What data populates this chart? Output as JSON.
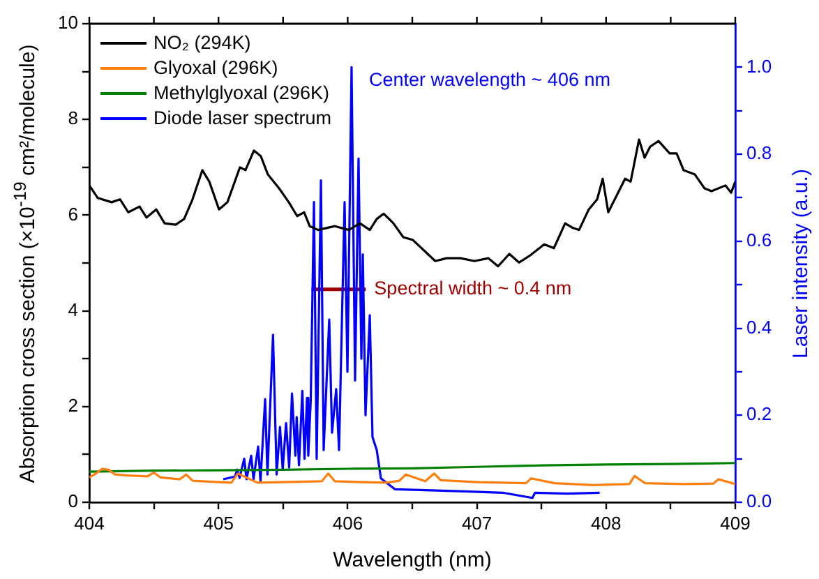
{
  "chart_data": {
    "type": "line",
    "xlabel": "Wavelength (nm)",
    "ylabel": "Absorption cross section (×10$^{-19}$ cm²/molecule)",
    "y2label": "Laser intensity (a.u.)",
    "xlim": [
      404,
      409
    ],
    "xticks": [
      404,
      {
        "value": 404.5,
        "label": null
      },
      405,
      {
        "value": 405.5,
        "label": null
      },
      406,
      {
        "value": 406.5,
        "label": null
      },
      407,
      {
        "value": 407.5,
        "label": null
      },
      408,
      {
        "value": 408.5,
        "label": null
      },
      409
    ],
    "ylim": [
      0,
      10
    ],
    "yticks": [
      0,
      {
        "value": 1,
        "label": null
      },
      2,
      {
        "value": 3,
        "label": null
      },
      4,
      {
        "value": 5,
        "label": null
      },
      6,
      {
        "value": 7,
        "label": null
      },
      8,
      {
        "value": 9,
        "label": null
      },
      10
    ],
    "y2lim": [
      0,
      1.1
    ],
    "y2ticks": [
      {
        "value": 0,
        "label": "0.0"
      },
      {
        "value": 0.1,
        "label": null
      },
      0.2,
      {
        "value": 0.3,
        "label": null
      },
      0.4,
      {
        "value": 0.5,
        "label": null
      },
      0.6,
      {
        "value": 0.7,
        "label": null
      },
      0.8,
      {
        "value": 0.9,
        "label": null
      },
      {
        "value": 1,
        "label": "1.0"
      }
    ],
    "legend": "top left",
    "grid": false,
    "marker": "none",
    "line_style": "solid",
    "annotations": [
      "Center wavelength ~ 406 nm",
      "Spectral width ~ 0.4 nm"
    ],
    "series": [
      {
        "name": "NO₂ (294K)",
        "color": "#000000",
        "x": [
          404,
          404.065,
          404.173,
          404.238,
          404.302,
          404.389,
          404.443,
          404.518,
          404.583,
          404.669,
          404.734,
          404.799,
          404.875,
          404.929,
          405.004,
          405.069,
          405.166,
          405.209,
          405.274,
          405.328,
          405.382,
          405.469,
          405.544,
          405.609,
          405.663,
          405.706,
          405.771,
          405.901,
          406.009,
          406.095,
          406.171,
          406.225,
          406.279,
          406.354,
          406.43,
          406.505,
          406.678,
          406.765,
          406.873,
          406.981,
          407.089,
          407.164,
          407.251,
          407.326,
          407.413,
          407.521,
          407.596,
          407.683,
          407.737,
          407.791,
          407.866,
          407.931,
          407.974,
          408.017,
          408.082,
          408.147,
          408.19,
          408.255,
          408.298,
          408.341,
          408.406,
          408.492,
          408.546,
          408.6,
          408.687,
          408.762,
          408.816,
          408.924,
          408.968,
          409
        ],
        "values": [
          6.62,
          6.36,
          6.27,
          6.33,
          6.06,
          6.18,
          5.95,
          6.12,
          5.83,
          5.8,
          5.92,
          6.33,
          6.94,
          6.7,
          6.12,
          6.27,
          7.0,
          6.94,
          7.35,
          7.23,
          6.85,
          6.56,
          6.27,
          5.98,
          6.06,
          5.77,
          5.69,
          5.77,
          5.69,
          5.83,
          5.69,
          5.92,
          6.03,
          5.83,
          5.54,
          5.48,
          5.04,
          5.1,
          5.1,
          5.04,
          5.1,
          4.93,
          5.19,
          5.01,
          5.16,
          5.39,
          5.31,
          5.83,
          5.74,
          5.69,
          6.12,
          6.33,
          6.76,
          6.06,
          6.41,
          6.76,
          6.7,
          7.58,
          7.2,
          7.43,
          7.55,
          7.29,
          7.29,
          6.94,
          6.85,
          6.56,
          6.5,
          6.62,
          6.47,
          6.7
        ]
      },
      {
        "name": "Glyoxal (296K)",
        "color": "#ff7f0e",
        "x": [
          404,
          404.05,
          404.1,
          404.15,
          404.2,
          404.3,
          404.45,
          404.5,
          404.55,
          404.7,
          404.75,
          404.8,
          405,
          405.1,
          405.15,
          405.3,
          405.5,
          405.8,
          405.85,
          405.9,
          406.1,
          406.3,
          406.4,
          406.45,
          406.6,
          406.67,
          406.72,
          407,
          407.38,
          407.42,
          407.6,
          407.9,
          408.18,
          408.22,
          408.3,
          408.6,
          408.83,
          408.87,
          409
        ],
        "values": [
          0.52,
          0.6,
          0.7,
          0.68,
          0.58,
          0.56,
          0.54,
          0.62,
          0.52,
          0.48,
          0.58,
          0.45,
          0.42,
          0.41,
          0.6,
          0.41,
          0.42,
          0.44,
          0.6,
          0.44,
          0.42,
          0.41,
          0.45,
          0.58,
          0.44,
          0.6,
          0.46,
          0.42,
          0.4,
          0.5,
          0.4,
          0.36,
          0.38,
          0.55,
          0.4,
          0.38,
          0.39,
          0.48,
          0.38
        ]
      },
      {
        "name": "Methylglyoxal (296K)",
        "color": "#008000",
        "x": [
          404,
          404.5,
          405,
          405.5,
          406,
          406.5,
          407,
          407.5,
          408,
          408.5,
          409
        ],
        "values": [
          0.64,
          0.66,
          0.67,
          0.68,
          0.7,
          0.71,
          0.74,
          0.77,
          0.79,
          0.8,
          0.82
        ]
      },
      {
        "name": "Diode laser spectrum",
        "color": "#0000ff",
        "axis": "y2",
        "x": [
          405.037,
          405.127,
          405.145,
          405.163,
          405.199,
          405.217,
          405.253,
          405.271,
          405.307,
          405.325,
          405.361,
          405.379,
          405.422,
          405.45,
          405.476,
          405.497,
          405.523,
          405.547,
          405.569,
          405.595,
          405.605,
          405.623,
          405.649,
          405.666,
          405.685,
          405.695,
          405.714,
          405.739,
          405.76,
          405.793,
          405.814,
          405.857,
          405.879,
          405.911,
          405.933,
          405.976,
          405.998,
          406.03,
          406.057,
          406.084,
          406.106,
          406.117,
          406.138,
          406.171,
          406.192,
          406.225,
          406.257,
          406.365,
          406.6,
          406.9,
          407.2,
          407.43,
          407.45,
          407.7,
          407.95
        ],
        "values": [
          0.053,
          0.059,
          0.075,
          0.056,
          0.1,
          0.053,
          0.107,
          0.053,
          0.128,
          0.048,
          0.237,
          0.064,
          0.385,
          0.064,
          0.173,
          0.075,
          0.182,
          0.08,
          0.25,
          0.107,
          0.196,
          0.085,
          0.256,
          0.1,
          0.24,
          0.107,
          0.235,
          0.69,
          0.1,
          0.74,
          0.12,
          0.42,
          0.16,
          0.26,
          0.12,
          0.69,
          0.3,
          1.0,
          0.28,
          0.79,
          0.33,
          0.57,
          0.2,
          0.43,
          0.15,
          0.12,
          0.055,
          0.03,
          0.028,
          0.025,
          0.022,
          0.01,
          0.022,
          0.02,
          0.022
        ]
      },
      {
        "color": "#a00000",
        "x": [
          405.72,
          406.14
        ],
        "values": [
          4.45,
          4.45
        ]
      }
    ]
  }
}
